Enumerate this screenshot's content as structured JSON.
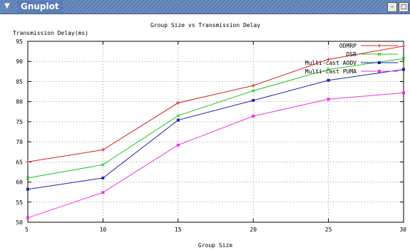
{
  "window": {
    "title": "Gnuplot",
    "menu_icon": "chevron-down-icon",
    "minimize_icon": "minimize-icon",
    "maximize_icon": "maximize-icon"
  },
  "chart_data": {
    "type": "line",
    "title": "Group Size vs Transmission Delay",
    "xlabel": "Group Size",
    "ylabel": "Transmission Delay(ms)",
    "x": [
      5,
      10,
      15,
      20,
      25,
      30
    ],
    "xlim": [
      5,
      30
    ],
    "ylim": [
      50,
      95
    ],
    "xticks": [
      5,
      10,
      15,
      20,
      25,
      30
    ],
    "yticks": [
      50,
      55,
      60,
      65,
      70,
      75,
      80,
      85,
      90,
      95
    ],
    "grid": true,
    "legend_position": "top-right",
    "series": [
      {
        "name": "ODMRP",
        "color": "#d42020",
        "marker": "plus",
        "values": [
          65,
          68,
          79.7,
          84,
          90.5,
          93.8
        ]
      },
      {
        "name": "DSR",
        "color": "#22c522",
        "marker": "x",
        "values": [
          61,
          64.3,
          76.5,
          82.7,
          88,
          90.7
        ]
      },
      {
        "name": "Multi-cast AODV",
        "color": "#2222aa",
        "marker": "square",
        "values": [
          58.2,
          61,
          75.4,
          80.3,
          85.3,
          88
        ]
      },
      {
        "name": "Multi-cast PUMA",
        "color": "#ee33dd",
        "marker": "square",
        "values": [
          51.1,
          57.4,
          69.2,
          76.4,
          80.6,
          82.2
        ]
      }
    ]
  }
}
